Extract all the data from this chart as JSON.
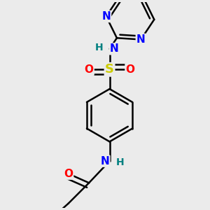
{
  "bg_color": "#ebebeb",
  "bond_color": "#000000",
  "bond_width": 1.8,
  "atom_colors": {
    "N": "#0000ff",
    "O": "#ff0000",
    "S": "#cccc00",
    "H": "#008080",
    "C": "#000000"
  },
  "font_size_atoms": 11,
  "font_size_H": 10
}
